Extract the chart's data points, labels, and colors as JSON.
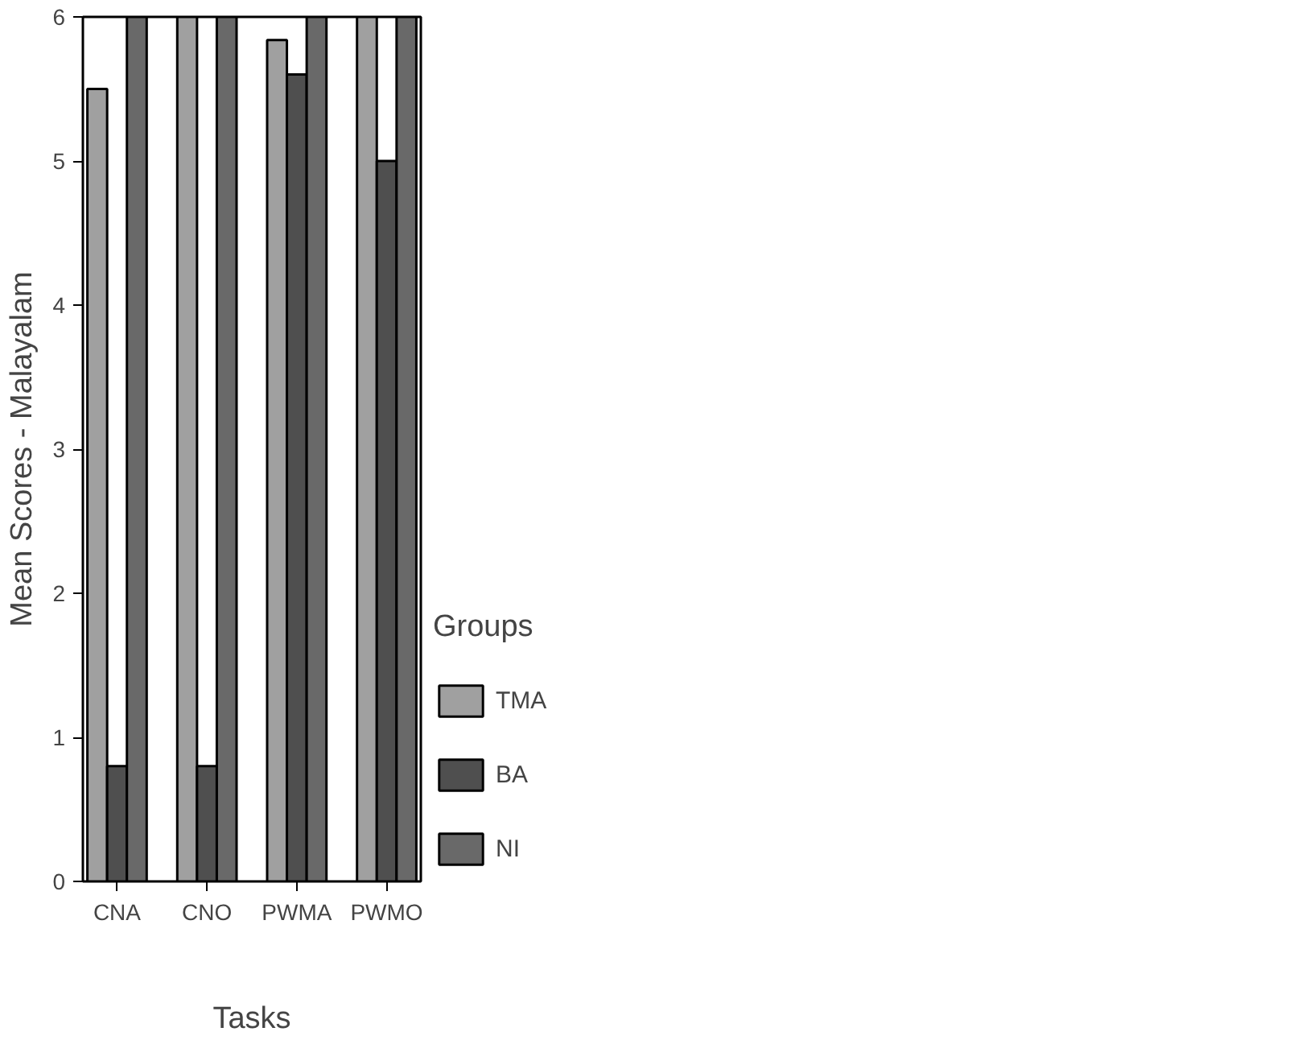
{
  "chart_data": {
    "type": "bar",
    "xlabel": "Tasks",
    "ylabel": "Mean Scores - Malayalam",
    "legend_title": "Groups",
    "legend": "right",
    "grid": false,
    "categories": [
      "CNA",
      "CNO",
      "PWMA",
      "PWMO"
    ],
    "ylim": [
      0,
      6
    ],
    "yticks": [
      0,
      1,
      2,
      3,
      4,
      5,
      6
    ],
    "series": [
      {
        "name": "TMA",
        "color": "#a0a0a0",
        "values": [
          5.5,
          6,
          5.84,
          6
        ]
      },
      {
        "name": "BA",
        "color": "#4f4f4f",
        "values": [
          0.8,
          0.8,
          5.6,
          5
        ]
      },
      {
        "name": "NI",
        "color": "#696969",
        "values": [
          6,
          6,
          6,
          6
        ]
      }
    ]
  }
}
